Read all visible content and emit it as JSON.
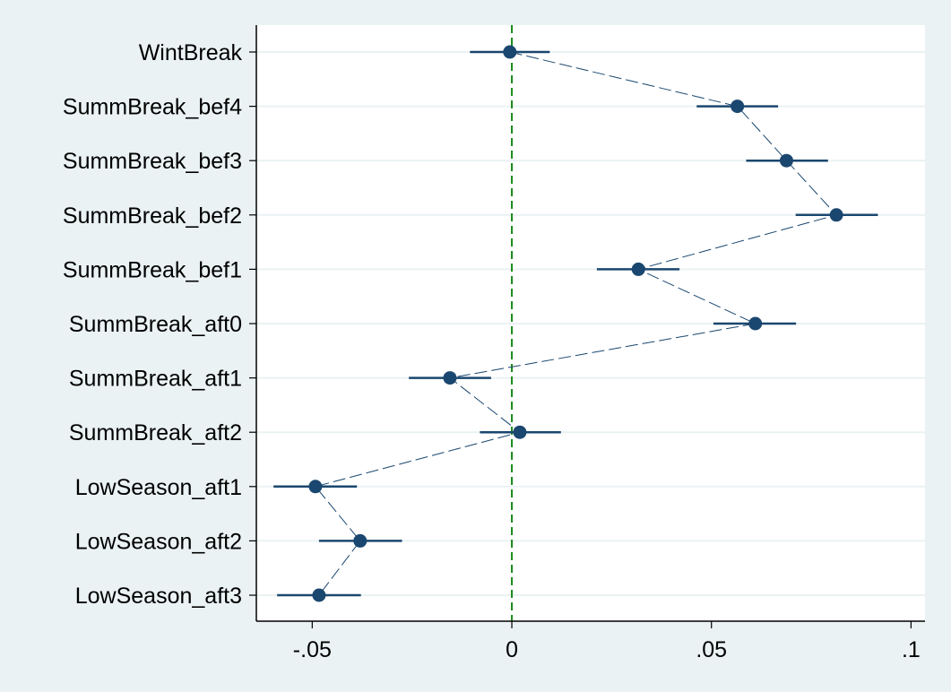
{
  "chart_data": {
    "type": "scatter",
    "subtype": "coefficient-plot",
    "title": "",
    "xlabel": "",
    "ylabel": "",
    "xlim": [
      -0.064,
      0.1035
    ],
    "x_ticks": [
      {
        "value": -0.05,
        "label": "-.05"
      },
      {
        "value": 0,
        "label": "0"
      },
      {
        "value": 0.05,
        "label": ".05"
      },
      {
        "value": 0.1,
        "label": ".1"
      }
    ],
    "reference_line": {
      "x": 0,
      "style": "dashed",
      "color": "#1a8a1a"
    },
    "grid": "horizontal",
    "connect_points": true,
    "colors": {
      "marker": "#1a476f",
      "grid": "#eaf2f3",
      "plot_bg": "#ffffff",
      "page_bg": "#eaf2f3"
    },
    "series": [
      {
        "points": [
          {
            "label": "WintBreak",
            "estimate": -0.0005,
            "ci_low": -0.0105,
            "ci_high": 0.0095
          },
          {
            "label": "SummBreak_bef4",
            "estimate": 0.0565,
            "ci_low": 0.0463,
            "ci_high": 0.0667
          },
          {
            "label": "SummBreak_bef3",
            "estimate": 0.0688,
            "ci_low": 0.0587,
            "ci_high": 0.0792
          },
          {
            "label": "SummBreak_bef2",
            "estimate": 0.0813,
            "ci_low": 0.0711,
            "ci_high": 0.0917
          },
          {
            "label": "SummBreak_bef1",
            "estimate": 0.0317,
            "ci_low": 0.0213,
            "ci_high": 0.042
          },
          {
            "label": "SummBreak_aft0",
            "estimate": 0.061,
            "ci_low": 0.0505,
            "ci_high": 0.0712
          },
          {
            "label": "SummBreak_aft1",
            "estimate": -0.0155,
            "ci_low": -0.0258,
            "ci_high": -0.0052
          },
          {
            "label": "SummBreak_aft2",
            "estimate": 0.002,
            "ci_low": -0.008,
            "ci_high": 0.0123
          },
          {
            "label": "LowSeason_aft1",
            "estimate": -0.0492,
            "ci_low": -0.0597,
            "ci_high": -0.0388
          },
          {
            "label": "LowSeason_aft2",
            "estimate": -0.038,
            "ci_low": -0.0483,
            "ci_high": -0.0275
          },
          {
            "label": "LowSeason_aft3",
            "estimate": -0.0483,
            "ci_low": -0.0588,
            "ci_high": -0.0378
          }
        ]
      }
    ]
  }
}
